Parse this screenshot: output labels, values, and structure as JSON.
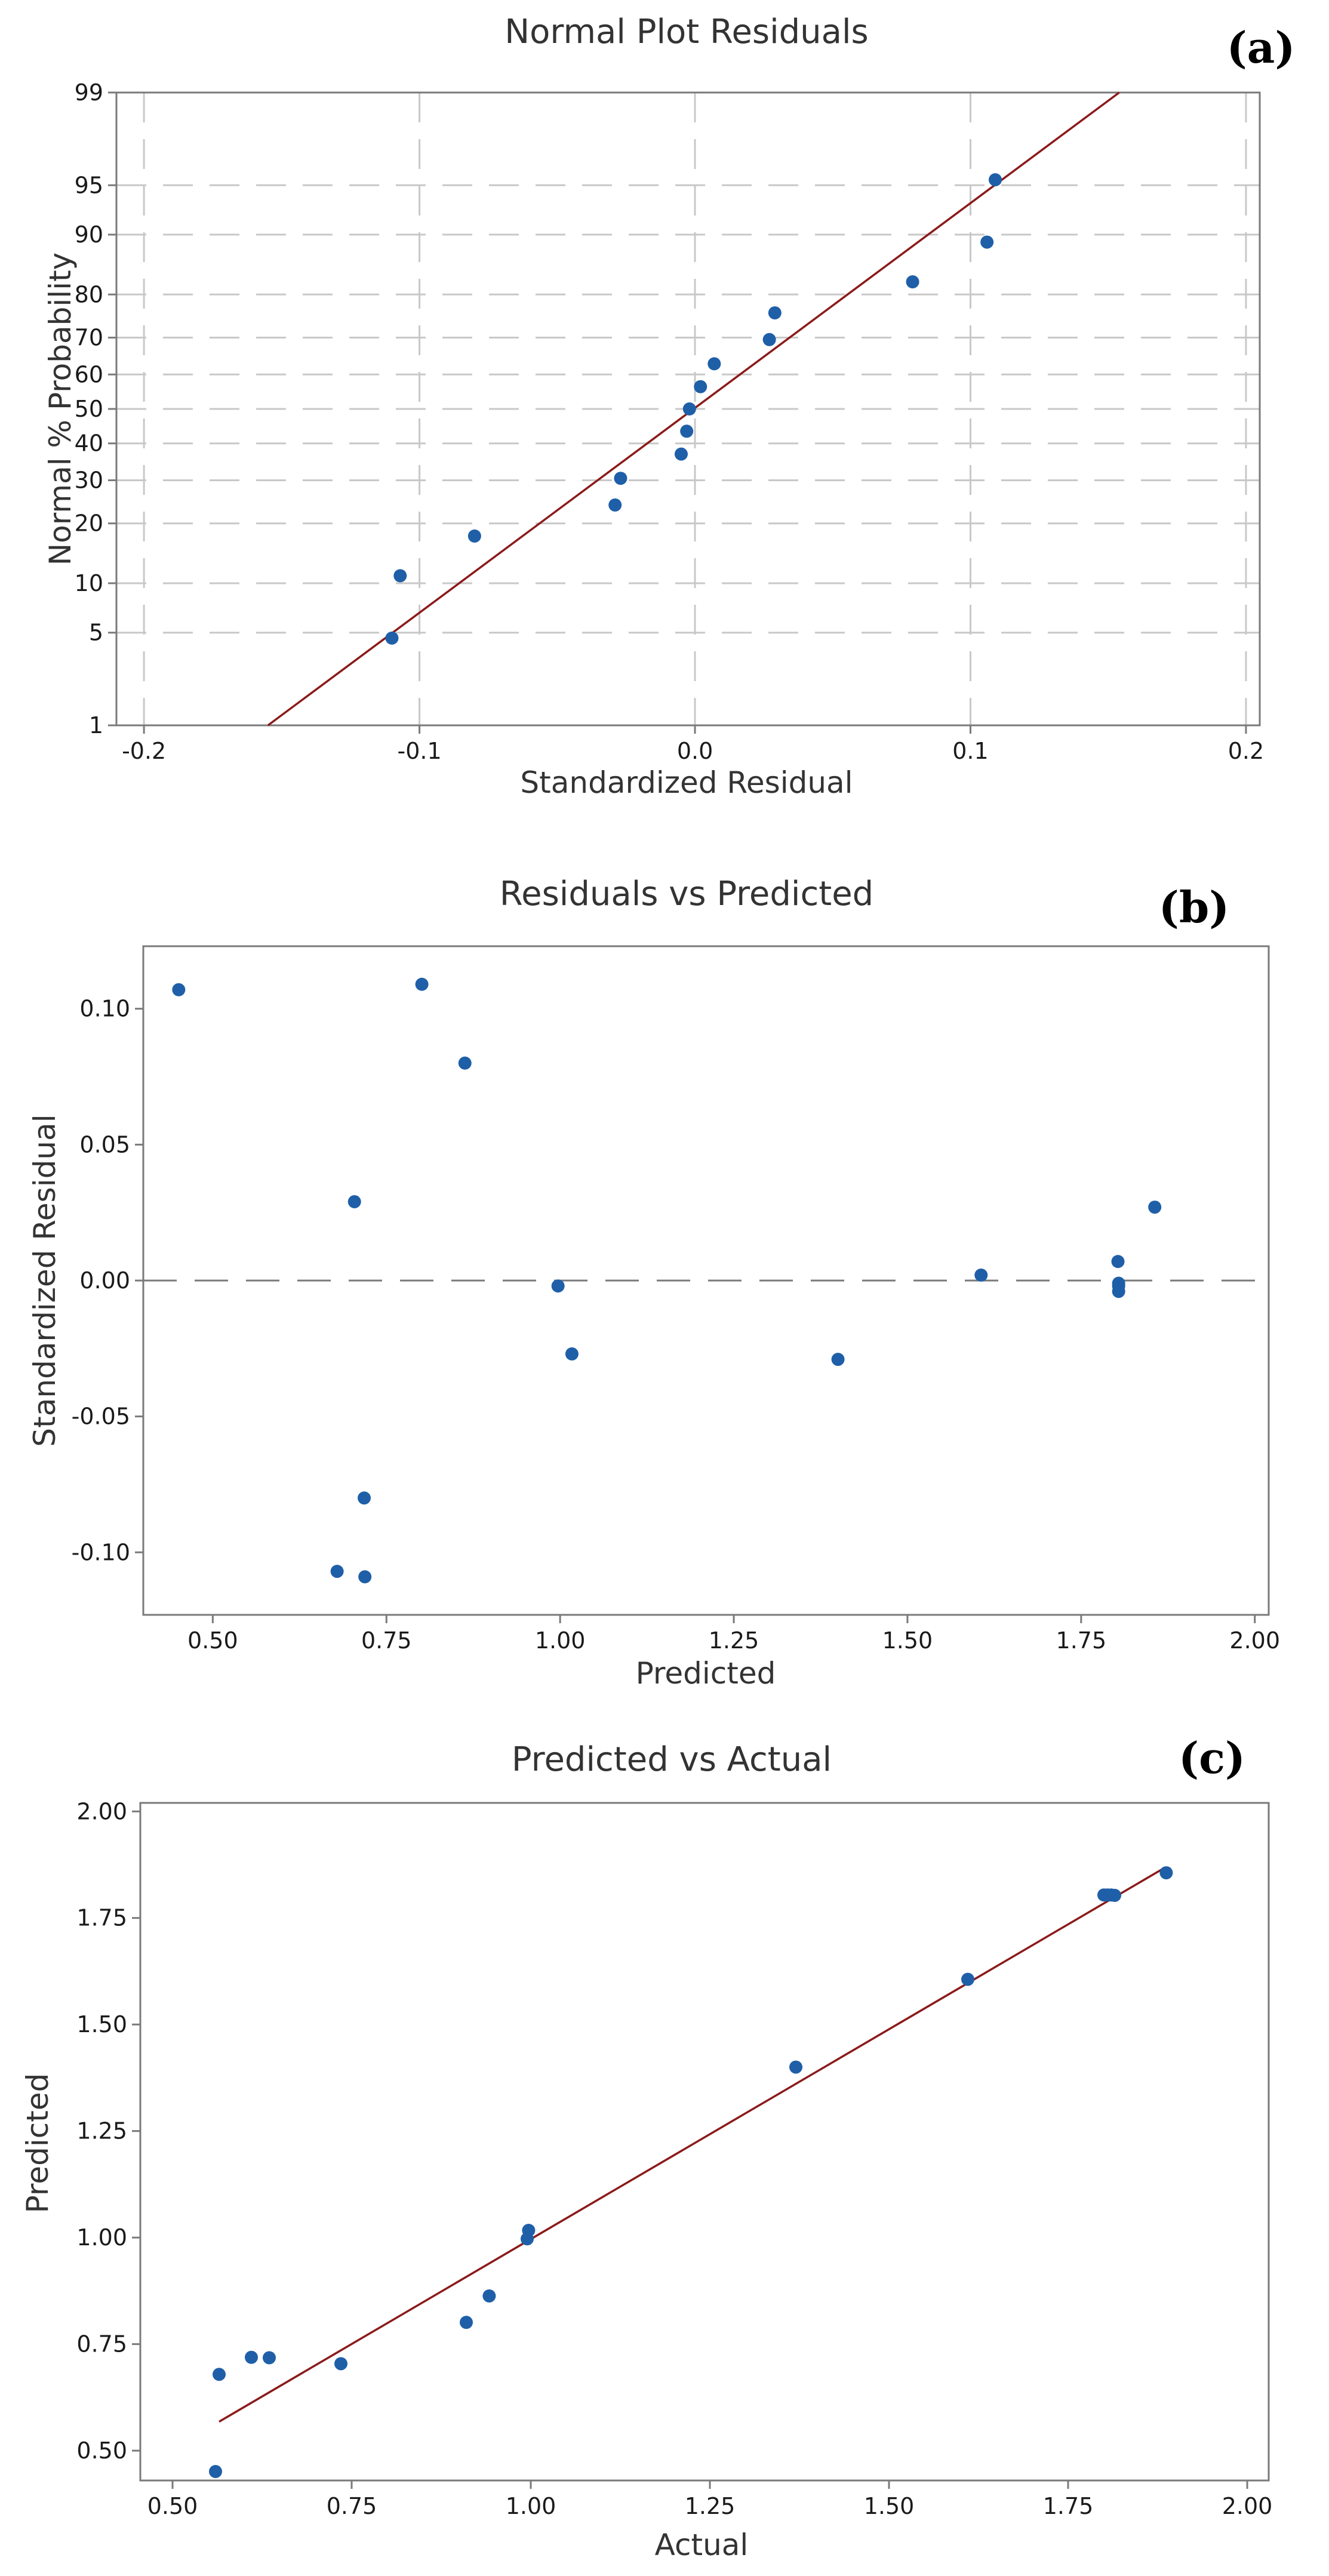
{
  "chart_data": [
    {
      "type": "scatter",
      "panel_tag": "(a)",
      "title": "Normal Plot Residuals",
      "xlabel": "Standardized Residual",
      "ylabel": "Normal % Probability",
      "xlim": [
        -0.21,
        0.205
      ],
      "x_ticks": [
        -0.2,
        -0.1,
        0.0,
        0.1,
        0.2
      ],
      "x_tick_labels": [
        "-0.2",
        "-0.1",
        "0.0",
        "0.1",
        "0.2"
      ],
      "y_scale": "normal-probability",
      "ylim": [
        1,
        99
      ],
      "y_ticks": [
        1,
        5,
        10,
        20,
        30,
        40,
        50,
        60,
        70,
        80,
        90,
        95,
        99
      ],
      "y_tick_labels": [
        "1",
        "5",
        "10",
        "20",
        "30",
        "40",
        "50",
        "60",
        "70",
        "80",
        "90",
        "95",
        "99"
      ],
      "grid": true,
      "fit_line": {
        "x": [
          -0.155,
          0.154
        ],
        "y": [
          1,
          99
        ]
      },
      "points": {
        "x": [
          -0.11,
          -0.107,
          -0.08,
          -0.029,
          -0.027,
          -0.005,
          -0.003,
          -0.002,
          0.002,
          0.007,
          0.027,
          0.029,
          0.079,
          0.106,
          0.109
        ],
        "y": [
          4.6,
          11.0,
          17.5,
          24.0,
          30.5,
          37.0,
          43.5,
          50.0,
          56.5,
          63.0,
          69.5,
          76.0,
          82.5,
          89.0,
          95.4
        ]
      }
    },
    {
      "type": "scatter",
      "panel_tag": "(b)",
      "title": "Residuals vs Predicted",
      "xlabel": "Predicted",
      "ylabel": "Standardized Residual",
      "xlim": [
        0.4,
        2.02
      ],
      "ylim": [
        -0.123,
        0.123
      ],
      "x_ticks": [
        0.5,
        0.75,
        1.0,
        1.25,
        1.5,
        1.75,
        2.0
      ],
      "x_tick_labels": [
        "0.50",
        "0.75",
        "1.00",
        "1.25",
        "1.50",
        "1.75",
        "2.00"
      ],
      "y_ticks": [
        -0.1,
        -0.05,
        0.0,
        0.05,
        0.1
      ],
      "y_tick_labels": [
        "-0.10",
        "-0.05",
        "0.00",
        "0.05",
        "0.10"
      ],
      "grid": false,
      "reference_line_y": 0,
      "points": {
        "x": [
          0.451,
          0.801,
          0.863,
          0.704,
          0.997,
          1.017,
          1.4,
          1.606,
          1.803,
          1.804,
          1.804,
          1.804,
          1.856,
          0.718,
          0.679,
          0.719
        ],
        "y": [
          0.107,
          0.109,
          0.08,
          0.029,
          -0.002,
          -0.027,
          -0.029,
          0.002,
          0.007,
          -0.001,
          -0.002,
          -0.004,
          0.027,
          -0.08,
          -0.107,
          -0.109
        ]
      }
    },
    {
      "type": "scatter",
      "panel_tag": "(c)",
      "title": "Predicted vs Actual",
      "xlabel": "Actual",
      "ylabel": "Predicted",
      "xlim": [
        0.455,
        2.03
      ],
      "ylim": [
        0.43,
        2.02
      ],
      "x_ticks": [
        0.5,
        0.75,
        1.0,
        1.25,
        1.5,
        1.75,
        2.0
      ],
      "x_tick_labels": [
        "0.50",
        "0.75",
        "1.00",
        "1.25",
        "1.50",
        "1.75",
        "2.00"
      ],
      "y_ticks": [
        0.5,
        0.75,
        1.0,
        1.25,
        1.5,
        1.75,
        2.0
      ],
      "y_tick_labels": [
        "0.50",
        "0.75",
        "1.00",
        "1.25",
        "1.50",
        "1.75",
        "2.00"
      ],
      "grid": false,
      "fit_line": {
        "x": [
          0.565,
          1.885
        ],
        "y": [
          0.568,
          1.868
        ]
      },
      "points": {
        "x": [
          0.56,
          0.565,
          0.61,
          0.635,
          0.735,
          0.91,
          0.942,
          0.995,
          0.997,
          1.37,
          1.61,
          1.8,
          1.805,
          1.81,
          1.815,
          1.887
        ],
        "y": [
          0.451,
          0.679,
          0.719,
          0.718,
          0.704,
          0.801,
          0.863,
          0.997,
          1.017,
          1.4,
          1.606,
          1.804,
          1.804,
          1.804,
          1.803,
          1.856
        ]
      }
    }
  ]
}
